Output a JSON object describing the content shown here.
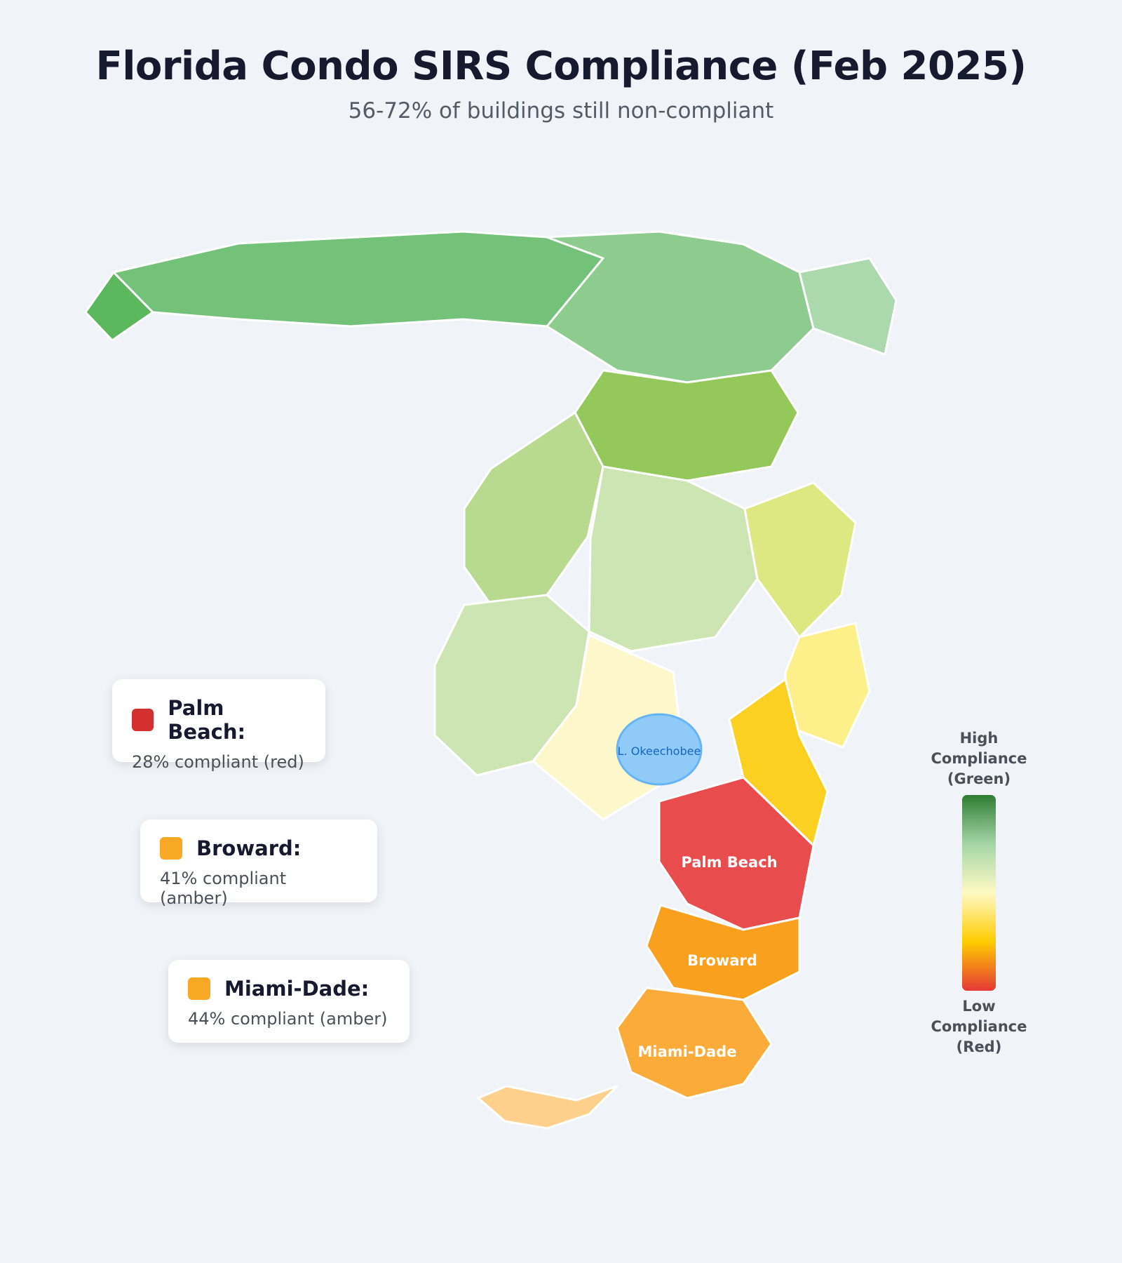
{
  "title": "Florida Condo SIRS Compliance (Feb 2025)",
  "subtitle": "56-72% of buildings still non-compliant",
  "map": {
    "lake_label": "L. Okeechobee",
    "region_labels": {
      "palm_beach": "Palm Beach",
      "broward": "Broward",
      "miami_dade": "Miami-Dade"
    },
    "colors": {
      "dark_green": "#5cb85c",
      "green": "#74c17a",
      "light_green": "#8dcb8f",
      "pale_green": "#abd9ad",
      "yellow_green": "#94c85a",
      "mid_green": "#b7da8f",
      "faint_green": "#cde5b2",
      "lime": "#dde883",
      "cream": "#fdf8cc",
      "pale_yellow": "#fdf08a",
      "gold": "#fbd020",
      "red": "#e84c4c",
      "orange": "#f9a01e",
      "amber": "#fbab3a",
      "light_amber": "#fdd18c",
      "lake": "#90caf9"
    }
  },
  "callouts": [
    {
      "name": "Palm Beach:",
      "detail": "28% compliant (red)",
      "color": "#d32f2f"
    },
    {
      "name": "Broward:",
      "detail": "41% compliant (amber)",
      "color": "#f9a825"
    },
    {
      "name": "Miami-Dade:",
      "detail": "44% compliant (amber)",
      "color": "#f9a825"
    }
  ],
  "legend": {
    "high_label": "High Compliance (Green)",
    "low_label": "Low Compliance (Red)",
    "high_lines": [
      "High",
      "Compliance",
      "(Green)"
    ],
    "low_lines": [
      "Low",
      "Compliance",
      "(Red)"
    ],
    "gradient_colors": [
      "#2e7d32",
      "#a5d6a7",
      "#fff9c4",
      "#ffcc00",
      "#e53935"
    ]
  }
}
